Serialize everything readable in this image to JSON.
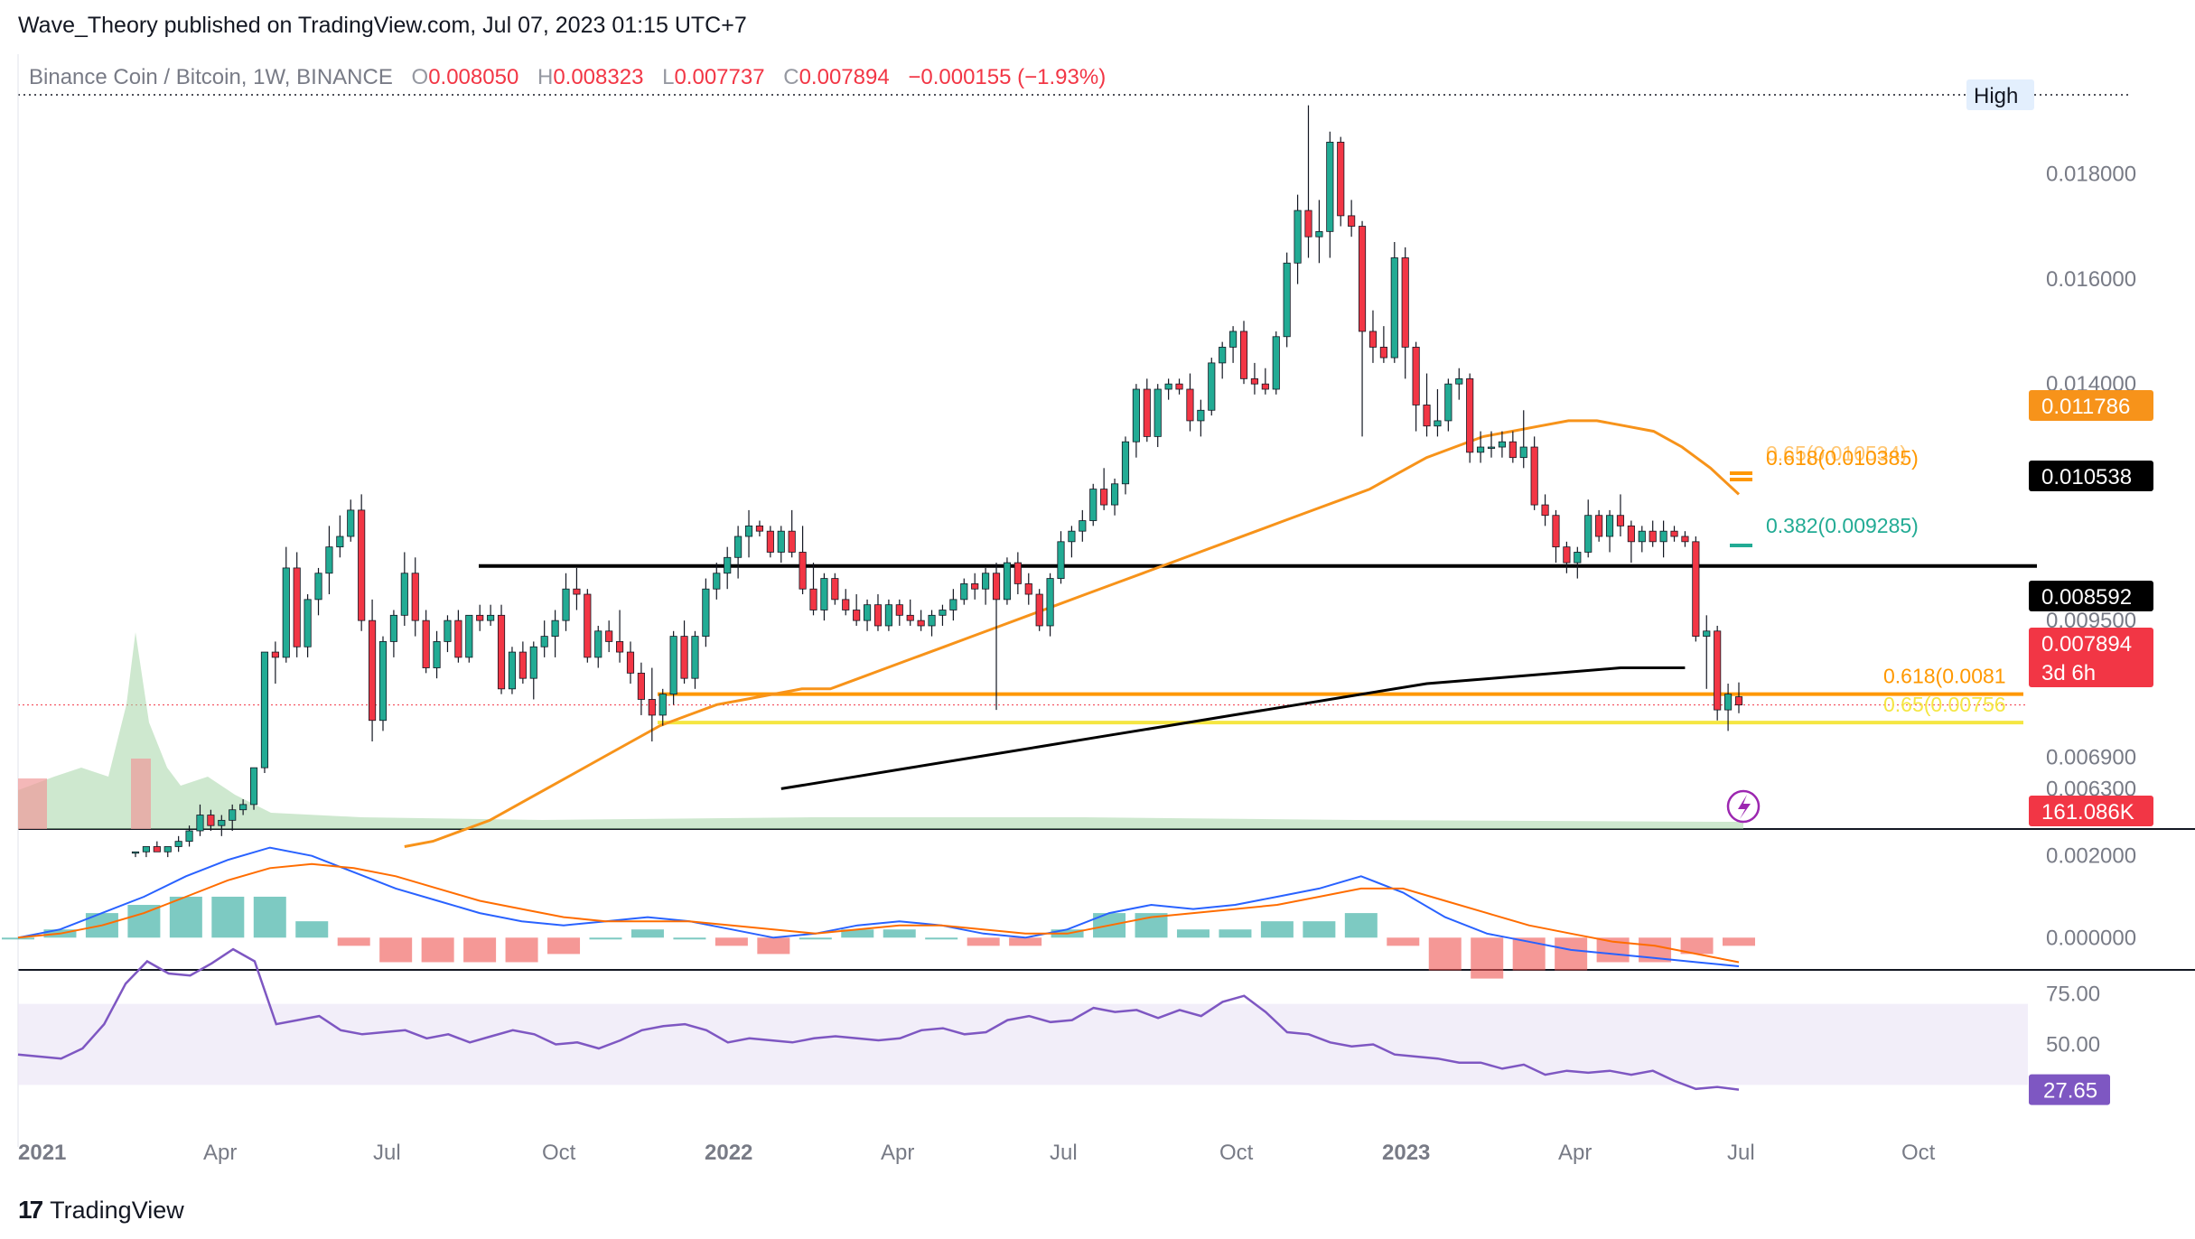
{
  "header": {
    "publisher_line": "Wave_Theory published on TradingView.com, Jul 07, 2023 01:15 UTC+7"
  },
  "legend": {
    "symbol": "Binance Coin / Bitcoin, 1W, BINANCE",
    "o_label": "O",
    "o_value": "0.008050",
    "h_label": "H",
    "h_value": "0.008323",
    "l_label": "L",
    "l_value": "0.007737",
    "c_label": "C",
    "c_value": "0.007894",
    "change": "−0.000155 (−1.93%)"
  },
  "footer": {
    "brand": "TradingView"
  },
  "colors": {
    "up": "#22ab94",
    "down": "#f23645",
    "ema_short": "#f7931a",
    "ema_long": "#000000",
    "fib_orange": "#ff9800",
    "fib_yellow": "#f5e642",
    "macd": "#2962ff",
    "signal": "#ff6d00",
    "rsi": "#7e57c2",
    "rsi_band": "#ede7f6"
  },
  "chart_data": {
    "type": "candlestick",
    "title": "Binance Coin / Bitcoin, 1W, BINANCE",
    "x_ticks": [
      "2021",
      "Apr",
      "Jul",
      "Oct",
      "2022",
      "Apr",
      "Jul",
      "Oct",
      "2023",
      "Apr",
      "Jul",
      "Oct"
    ],
    "price_ticks": [
      "0.018000",
      "0.016000",
      "0.014000",
      "0.009500",
      "0.006900",
      "0.006300"
    ],
    "price_range": [
      0.0055,
      0.0195
    ],
    "ohlc_last": {
      "open": 0.00805,
      "high": 0.008323,
      "low": 0.007737,
      "close": 0.007894
    },
    "candles": [
      [
        0.0051,
        0.0051,
        0.005,
        0.0051
      ],
      [
        0.0051,
        0.0052,
        0.005,
        0.0052
      ],
      [
        0.0052,
        0.0053,
        0.0051,
        0.0051
      ],
      [
        0.0051,
        0.0052,
        0.005,
        0.0052
      ],
      [
        0.0052,
        0.0054,
        0.0051,
        0.0053
      ],
      [
        0.0053,
        0.0056,
        0.0052,
        0.0055
      ],
      [
        0.0055,
        0.006,
        0.0054,
        0.0058
      ],
      [
        0.0058,
        0.0059,
        0.0055,
        0.0056
      ],
      [
        0.0056,
        0.0058,
        0.0054,
        0.0057
      ],
      [
        0.0057,
        0.006,
        0.0055,
        0.0059
      ],
      [
        0.0059,
        0.0061,
        0.0058,
        0.006
      ],
      [
        0.006,
        0.0067,
        0.0059,
        0.0067
      ],
      [
        0.0067,
        0.0089,
        0.0066,
        0.0089
      ],
      [
        0.0089,
        0.0091,
        0.0083,
        0.0088
      ],
      [
        0.0088,
        0.0109,
        0.0087,
        0.0105
      ],
      [
        0.0105,
        0.0108,
        0.0088,
        0.009
      ],
      [
        0.009,
        0.01,
        0.0088,
        0.0099
      ],
      [
        0.0099,
        0.0105,
        0.0096,
        0.0104
      ],
      [
        0.0104,
        0.0113,
        0.01,
        0.0109
      ],
      [
        0.0109,
        0.0115,
        0.0107,
        0.0111
      ],
      [
        0.0111,
        0.0118,
        0.011,
        0.0116
      ],
      [
        0.0116,
        0.0119,
        0.0093,
        0.0095
      ],
      [
        0.0095,
        0.0099,
        0.0072,
        0.0076
      ],
      [
        0.0076,
        0.0092,
        0.0074,
        0.0091
      ],
      [
        0.0091,
        0.0097,
        0.0088,
        0.0096
      ],
      [
        0.0096,
        0.0108,
        0.0094,
        0.0104
      ],
      [
        0.0104,
        0.0107,
        0.0092,
        0.0095
      ],
      [
        0.0095,
        0.0097,
        0.0085,
        0.0086
      ],
      [
        0.0086,
        0.0093,
        0.0084,
        0.0091
      ],
      [
        0.0091,
        0.0096,
        0.0089,
        0.0095
      ],
      [
        0.0095,
        0.0097,
        0.0087,
        0.0088
      ],
      [
        0.0088,
        0.0096,
        0.0087,
        0.0096
      ],
      [
        0.0096,
        0.0098,
        0.0093,
        0.0095
      ],
      [
        0.0095,
        0.0098,
        0.0094,
        0.0096
      ],
      [
        0.0096,
        0.0098,
        0.0081,
        0.0082
      ],
      [
        0.0082,
        0.009,
        0.0081,
        0.0089
      ],
      [
        0.0089,
        0.0091,
        0.0083,
        0.0084
      ],
      [
        0.0084,
        0.0091,
        0.008,
        0.009
      ],
      [
        0.009,
        0.0095,
        0.0088,
        0.0092
      ],
      [
        0.0092,
        0.0097,
        0.0088,
        0.0095
      ],
      [
        0.0095,
        0.0104,
        0.0093,
        0.0101
      ],
      [
        0.0101,
        0.0105,
        0.0097,
        0.01
      ],
      [
        0.01,
        0.0101,
        0.0087,
        0.0088
      ],
      [
        0.0088,
        0.0094,
        0.0086,
        0.0093
      ],
      [
        0.0093,
        0.0095,
        0.0089,
        0.0091
      ],
      [
        0.0091,
        0.0097,
        0.0087,
        0.0089
      ],
      [
        0.0089,
        0.0091,
        0.0083,
        0.0085
      ],
      [
        0.0085,
        0.0087,
        0.0077,
        0.008
      ],
      [
        0.008,
        0.0086,
        0.0072,
        0.0077
      ],
      [
        0.0077,
        0.0082,
        0.0075,
        0.0081
      ],
      [
        0.0081,
        0.0093,
        0.0079,
        0.0092
      ],
      [
        0.0092,
        0.0095,
        0.0083,
        0.0084
      ],
      [
        0.0084,
        0.0093,
        0.0082,
        0.0092
      ],
      [
        0.0092,
        0.0103,
        0.009,
        0.0101
      ],
      [
        0.0101,
        0.0106,
        0.0099,
        0.0104
      ],
      [
        0.0104,
        0.0109,
        0.0101,
        0.0107
      ],
      [
        0.0107,
        0.0113,
        0.0103,
        0.0111
      ],
      [
        0.0111,
        0.0116,
        0.0107,
        0.0113
      ],
      [
        0.0113,
        0.0114,
        0.0111,
        0.0112
      ],
      [
        0.0112,
        0.0113,
        0.0107,
        0.0108
      ],
      [
        0.0108,
        0.0113,
        0.0106,
        0.0112
      ],
      [
        0.0112,
        0.0116,
        0.0107,
        0.0108
      ],
      [
        0.0108,
        0.0113,
        0.01,
        0.0101
      ],
      [
        0.0101,
        0.0106,
        0.0096,
        0.0097
      ],
      [
        0.0097,
        0.0104,
        0.0095,
        0.0103
      ],
      [
        0.0103,
        0.0104,
        0.0098,
        0.0099
      ],
      [
        0.0099,
        0.0101,
        0.0096,
        0.0097
      ],
      [
        0.0097,
        0.01,
        0.0094,
        0.0095
      ],
      [
        0.0095,
        0.0099,
        0.0093,
        0.0098
      ],
      [
        0.0098,
        0.01,
        0.0093,
        0.0094
      ],
      [
        0.0094,
        0.0099,
        0.0093,
        0.0098
      ],
      [
        0.0098,
        0.0099,
        0.0094,
        0.0096
      ],
      [
        0.0096,
        0.0099,
        0.0094,
        0.0095
      ],
      [
        0.0095,
        0.0097,
        0.0093,
        0.0094
      ],
      [
        0.0094,
        0.0097,
        0.0092,
        0.0096
      ],
      [
        0.0096,
        0.0098,
        0.0094,
        0.0097
      ],
      [
        0.0097,
        0.0101,
        0.0095,
        0.0099
      ],
      [
        0.0099,
        0.0103,
        0.0098,
        0.0102
      ],
      [
        0.0102,
        0.0104,
        0.0099,
        0.0101
      ],
      [
        0.0101,
        0.0105,
        0.0098,
        0.0104
      ],
      [
        0.0104,
        0.0106,
        0.0078,
        0.0099
      ],
      [
        0.0099,
        0.0107,
        0.0098,
        0.0106
      ],
      [
        0.0106,
        0.0108,
        0.01,
        0.0102
      ],
      [
        0.0102,
        0.0104,
        0.0098,
        0.01
      ],
      [
        0.01,
        0.0101,
        0.0093,
        0.0094
      ],
      [
        0.0094,
        0.0104,
        0.0092,
        0.0103
      ],
      [
        0.0103,
        0.0112,
        0.0102,
        0.011
      ],
      [
        0.011,
        0.0113,
        0.0107,
        0.0112
      ],
      [
        0.0112,
        0.0116,
        0.011,
        0.0114
      ],
      [
        0.0114,
        0.0121,
        0.0113,
        0.012
      ],
      [
        0.012,
        0.0124,
        0.0116,
        0.0117
      ],
      [
        0.0117,
        0.0122,
        0.0115,
        0.0121
      ],
      [
        0.0121,
        0.013,
        0.0119,
        0.0129
      ],
      [
        0.0129,
        0.014,
        0.0126,
        0.0139
      ],
      [
        0.0139,
        0.0141,
        0.0129,
        0.013
      ],
      [
        0.013,
        0.014,
        0.0128,
        0.0139
      ],
      [
        0.0139,
        0.0141,
        0.0137,
        0.014
      ],
      [
        0.014,
        0.0141,
        0.0138,
        0.0139
      ],
      [
        0.0139,
        0.0142,
        0.0131,
        0.0133
      ],
      [
        0.0133,
        0.0137,
        0.013,
        0.0135
      ],
      [
        0.0135,
        0.0145,
        0.0134,
        0.0144
      ],
      [
        0.0144,
        0.0148,
        0.0141,
        0.0147
      ],
      [
        0.0147,
        0.0151,
        0.0144,
        0.015
      ],
      [
        0.015,
        0.0152,
        0.014,
        0.0141
      ],
      [
        0.0141,
        0.0144,
        0.0138,
        0.014
      ],
      [
        0.014,
        0.0143,
        0.0138,
        0.0139
      ],
      [
        0.0139,
        0.015,
        0.0138,
        0.0149
      ],
      [
        0.0149,
        0.0165,
        0.0147,
        0.0163
      ],
      [
        0.0163,
        0.0176,
        0.0159,
        0.0173
      ],
      [
        0.0173,
        0.0193,
        0.0164,
        0.0168
      ],
      [
        0.0168,
        0.0175,
        0.0163,
        0.0169
      ],
      [
        0.0169,
        0.0188,
        0.0164,
        0.0186
      ],
      [
        0.0186,
        0.0187,
        0.017,
        0.0172
      ],
      [
        0.0172,
        0.0175,
        0.0168,
        0.017
      ],
      [
        0.017,
        0.0171,
        0.013,
        0.015
      ],
      [
        0.015,
        0.0154,
        0.0144,
        0.0147
      ],
      [
        0.0147,
        0.0151,
        0.0144,
        0.0145
      ],
      [
        0.0145,
        0.0167,
        0.0144,
        0.0164
      ],
      [
        0.0164,
        0.0166,
        0.0141,
        0.0147
      ],
      [
        0.0147,
        0.0148,
        0.0131,
        0.0136
      ],
      [
        0.0136,
        0.0142,
        0.013,
        0.0132
      ],
      [
        0.0132,
        0.0139,
        0.013,
        0.0133
      ],
      [
        0.0133,
        0.0141,
        0.0131,
        0.014
      ],
      [
        0.014,
        0.0143,
        0.0137,
        0.0141
      ],
      [
        0.0141,
        0.0142,
        0.0125,
        0.0127
      ],
      [
        0.0127,
        0.0131,
        0.0125,
        0.0128
      ],
      [
        0.0128,
        0.0131,
        0.0126,
        0.0128
      ],
      [
        0.0128,
        0.0131,
        0.0126,
        0.0129
      ],
      [
        0.0129,
        0.0131,
        0.0125,
        0.0126
      ],
      [
        0.0126,
        0.0135,
        0.0124,
        0.0128
      ],
      [
        0.0128,
        0.013,
        0.0116,
        0.0117
      ],
      [
        0.0117,
        0.0119,
        0.0113,
        0.0115
      ],
      [
        0.0115,
        0.0116,
        0.0106,
        0.0109
      ],
      [
        0.0109,
        0.011,
        0.0104,
        0.0106
      ],
      [
        0.0106,
        0.0109,
        0.0103,
        0.0108
      ],
      [
        0.0108,
        0.0118,
        0.0107,
        0.0115
      ],
      [
        0.0115,
        0.0116,
        0.011,
        0.0111
      ],
      [
        0.0111,
        0.0116,
        0.0108,
        0.0115
      ],
      [
        0.0115,
        0.0119,
        0.0111,
        0.0113
      ],
      [
        0.0113,
        0.0114,
        0.0106,
        0.011
      ],
      [
        0.011,
        0.0113,
        0.0108,
        0.0112
      ],
      [
        0.0112,
        0.0114,
        0.0109,
        0.011
      ],
      [
        0.011,
        0.0114,
        0.0107,
        0.0112
      ],
      [
        0.0112,
        0.0113,
        0.011,
        0.0111
      ],
      [
        0.0111,
        0.0112,
        0.0109,
        0.011
      ],
      [
        0.011,
        0.0111,
        0.0091,
        0.0092
      ],
      [
        0.0092,
        0.0096,
        0.0082,
        0.0093
      ],
      [
        0.0093,
        0.0094,
        0.0076,
        0.0078
      ],
      [
        0.0078,
        0.0083,
        0.0074,
        0.0081
      ],
      [
        0.00805,
        0.008323,
        0.007737,
        0.007894
      ]
    ],
    "volume_label": "161.086K",
    "ma_series": [
      {
        "name": "EMA 50",
        "color_key": "ema_short",
        "last_value": "0.011786",
        "values": [
          0.0052,
          0.0053,
          0.0055,
          0.0057,
          0.006,
          0.0063,
          0.0066,
          0.0069,
          0.0072,
          0.0075,
          0.0077,
          0.0079,
          0.008,
          0.0081,
          0.0082,
          0.0082,
          0.0084,
          0.0086,
          0.0088,
          0.009,
          0.0092,
          0.0094,
          0.0096,
          0.0098,
          0.01,
          0.0102,
          0.0104,
          0.0106,
          0.0108,
          0.011,
          0.0112,
          0.0114,
          0.0116,
          0.0118,
          0.012,
          0.0123,
          0.0126,
          0.0128,
          0.013,
          0.0131,
          0.0132,
          0.0133,
          0.0133,
          0.0132,
          0.0131,
          0.0128,
          0.0124,
          0.0119
        ]
      },
      {
        "name": "EMA 200",
        "color_key": "ema_long",
        "last_value": "0.008592",
        "values": [
          0.0063,
          0.0065,
          0.0067,
          0.0069,
          0.0071,
          0.0073,
          0.0075,
          0.0077,
          0.0079,
          0.0081,
          0.0083,
          0.0084,
          0.0085,
          0.0086,
          0.0086
        ]
      }
    ],
    "horizontal_levels": [
      {
        "label": "0.010538",
        "value": 0.010538,
        "color_key": "ema_long"
      },
      {
        "label": "0.618(0.0081",
        "value": 0.0081,
        "color_key": "fib_orange"
      },
      {
        "label": "0.65(0.00756",
        "value": 0.00756,
        "color_key": "fib_yellow"
      }
    ],
    "fib_annotations": [
      {
        "text": "0.65(0.010534)",
        "color_key": "fib_orange",
        "faded": true
      },
      {
        "text": "0.618(0.010385)",
        "color_key": "fib_orange"
      },
      {
        "text": "0.382(0.009285)",
        "color_key": "up"
      }
    ],
    "price_badges": [
      {
        "text": "High",
        "kind": "light"
      },
      {
        "text": "0.011786",
        "color_key": "ema_short"
      },
      {
        "text": "0.010538",
        "color_key": "ema_long"
      },
      {
        "text": "0.008592",
        "color_key": "ema_long"
      },
      {
        "text": "0.007894",
        "sub": "3d 6h",
        "color_key": "down"
      },
      {
        "text": "161.086K",
        "color_key": "down"
      }
    ],
    "macd": {
      "ticks": [
        "0.002000",
        "0.000000"
      ],
      "range": [
        -0.0007,
        0.0025
      ],
      "macd": [
        0.0,
        0.0002,
        0.0006,
        0.001,
        0.0015,
        0.0019,
        0.0022,
        0.002,
        0.0016,
        0.0012,
        0.0009,
        0.0006,
        0.0004,
        0.0003,
        0.0004,
        0.0005,
        0.0004,
        0.0002,
        0.0,
        0.0001,
        0.0003,
        0.0004,
        0.0003,
        0.0001,
        0.0,
        0.0002,
        0.0006,
        0.0008,
        0.0007,
        0.0008,
        0.001,
        0.0012,
        0.0015,
        0.0011,
        0.0005,
        0.0001,
        -0.0001,
        -0.0003,
        -0.0004,
        -0.0005,
        -0.0006,
        -0.0007
      ],
      "signal": [
        0.0,
        0.0001,
        0.0003,
        0.0006,
        0.001,
        0.0014,
        0.0017,
        0.0018,
        0.0017,
        0.0015,
        0.0012,
        0.0009,
        0.0007,
        0.0005,
        0.0004,
        0.0004,
        0.0004,
        0.0003,
        0.0002,
        0.0001,
        0.0002,
        0.0003,
        0.0003,
        0.0002,
        0.0001,
        0.0001,
        0.0003,
        0.0005,
        0.0006,
        0.0007,
        0.0008,
        0.001,
        0.0012,
        0.0012,
        0.0009,
        0.0006,
        0.0003,
        0.0001,
        -0.0001,
        -0.0002,
        -0.0004,
        -0.0006
      ]
    },
    "rsi": {
      "ticks": [
        "75.00",
        "50.00"
      ],
      "range": [
        15,
        85
      ],
      "band": [
        30,
        70
      ],
      "last_value": "27.65",
      "values": [
        45,
        44,
        43,
        48,
        60,
        80,
        91,
        85,
        84,
        90,
        97,
        91,
        60,
        62,
        64,
        57,
        55,
        56,
        57,
        53,
        55,
        51,
        54,
        57,
        55,
        50,
        51,
        48,
        52,
        57,
        59,
        60,
        57,
        51,
        53,
        52,
        51,
        53,
        54,
        53,
        52,
        53,
        57,
        58,
        55,
        56,
        62,
        64,
        61,
        62,
        68,
        66,
        67,
        63,
        67,
        64,
        71,
        74,
        66,
        56,
        55,
        51,
        49,
        50,
        45,
        44,
        43,
        41,
        41,
        38,
        40,
        35,
        37,
        36,
        37,
        35,
        37,
        32,
        28,
        29,
        27.65
      ]
    }
  }
}
